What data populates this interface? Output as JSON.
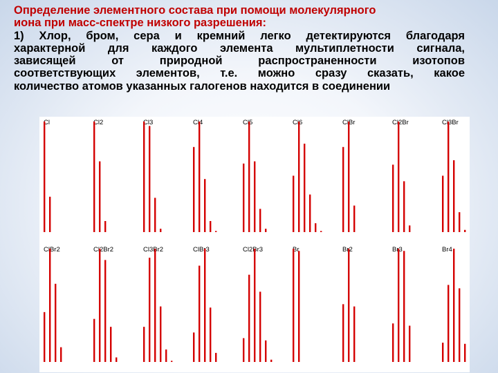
{
  "slide": {
    "title_lines": [
      "Определение элементного состава при помощи молекулярного",
      "иона при масс-спектре низкого разрешения:"
    ],
    "body_lines": [
      "1) Хлор, бром, сера и кремний легко детектируются благодаря",
      "характерной для каждого элемента мультиплетности сигнала,",
      "зависящей от природной распространенности изотопов",
      "соответствующих элементов, т.е. можно сразу сказать, какое",
      "количество атомов указанных галогенов находится в соединении"
    ]
  },
  "colors": {
    "bar": "#d40000",
    "title": "#c00000"
  },
  "chart_data": {
    "type": "bar",
    "note_units": "relative intensity, tallest peak = 100",
    "panels": [
      {
        "label": "Cl",
        "values": [
          100,
          32
        ]
      },
      {
        "label": "Cl2",
        "values": [
          100,
          64,
          10
        ]
      },
      {
        "label": "Cl3",
        "values": [
          100,
          96,
          31,
          3
        ]
      },
      {
        "label": "Cl4",
        "values": [
          77,
          100,
          48,
          10,
          1
        ]
      },
      {
        "label": "Cl5",
        "values": [
          62,
          100,
          64,
          21,
          3
        ]
      },
      {
        "label": "Cl6",
        "values": [
          51,
          100,
          80,
          34,
          8,
          1
        ]
      },
      {
        "label": "ClBr",
        "values": [
          77,
          100,
          24
        ]
      },
      {
        "label": "Cl2Br",
        "values": [
          61,
          100,
          46,
          6
        ]
      },
      {
        "label": "Cl3Br",
        "values": [
          51,
          100,
          65,
          18,
          2
        ]
      },
      {
        "label": "ClBr2",
        "values": [
          44,
          100,
          69,
          13
        ]
      },
      {
        "label": "Cl2Br2",
        "values": [
          38,
          100,
          90,
          31,
          4
        ]
      },
      {
        "label": "Cl3Br2",
        "values": [
          31,
          92,
          100,
          49,
          11,
          1
        ]
      },
      {
        "label": "ClBr3",
        "values": [
          26,
          85,
          100,
          48,
          8
        ]
      },
      {
        "label": "Cl2Br3",
        "values": [
          21,
          77,
          100,
          62,
          19,
          2
        ]
      },
      {
        "label": "Br",
        "values": [
          100,
          98
        ]
      },
      {
        "label": "Br2",
        "values": [
          51,
          100,
          49
        ]
      },
      {
        "label": "Br3",
        "values": [
          34,
          100,
          98,
          32
        ]
      },
      {
        "label": "Br4",
        "values": [
          17,
          68,
          100,
          65,
          16
        ]
      }
    ]
  }
}
